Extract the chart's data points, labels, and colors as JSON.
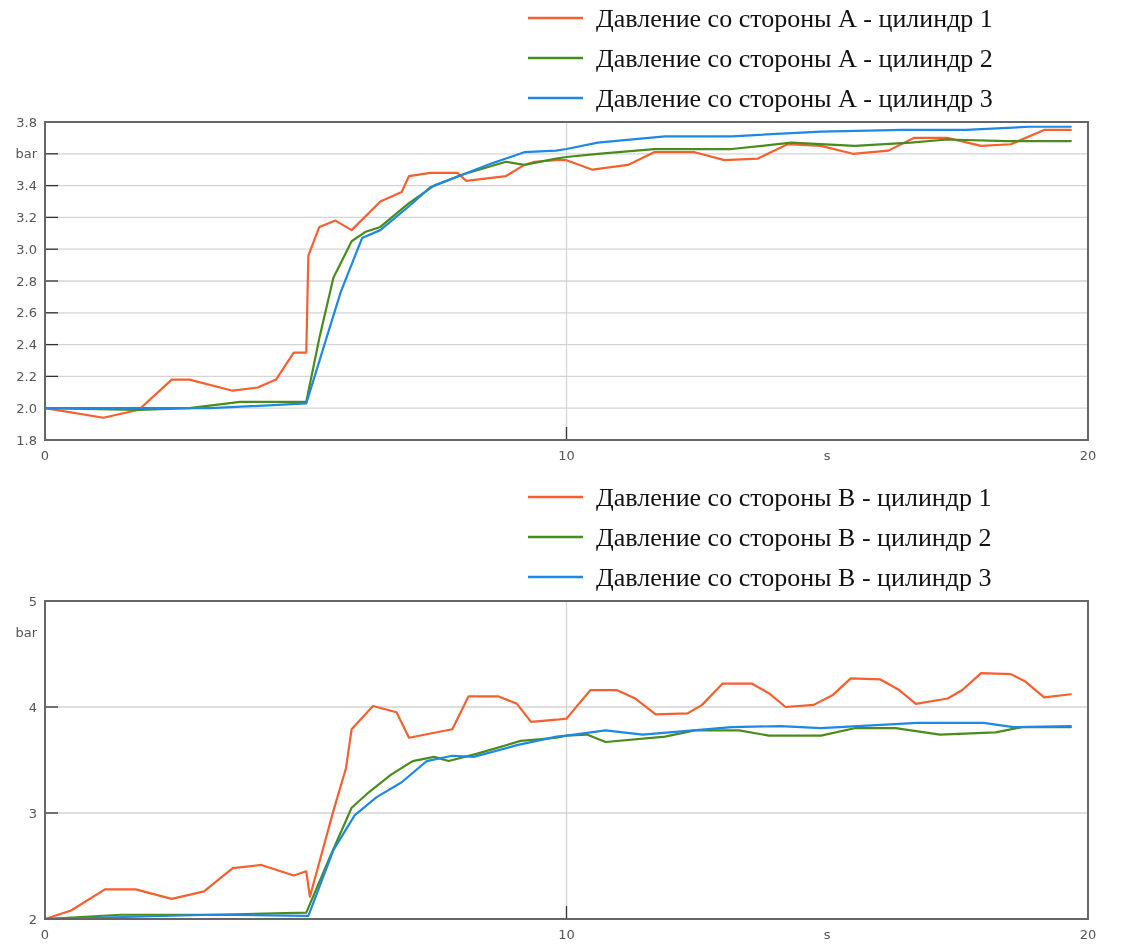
{
  "chart_data": [
    {
      "type": "line",
      "xlabel": "s",
      "ylabel": "bar",
      "xlim": [
        0,
        20
      ],
      "xticks": [
        0,
        10,
        20
      ],
      "ylim": [
        1.8,
        3.8
      ],
      "yticks": [
        1.8,
        {
          "value": 2,
          "label": "2.0"
        },
        2.2,
        2.4,
        2.6,
        2.8,
        {
          "value": 3,
          "label": "3.0"
        },
        3.2,
        3.4,
        {
          "value": 3.6,
          "label": null
        },
        3.8
      ],
      "grid": true,
      "legend": "top right",
      "line_style": "solid",
      "series": [
        {
          "name": "Давление со стороны А - цилиндр 1",
          "color": "#f5602f",
          "x": [
            0,
            1.12,
            1.8,
            2.43,
            2.77,
            3.6,
            4.08,
            4.43,
            4.77,
            5.01,
            5.05,
            5.26,
            5.57,
            5.88,
            6.43,
            6.84,
            6.98,
            7.39,
            7.91,
            8.08,
            8.84,
            9.19,
            9.39,
            9.8,
            10,
            10.5,
            11.18,
            11.68,
            12.46,
            13.03,
            13.67,
            14.24,
            14.88,
            15.49,
            16.17,
            16.66,
            17.3,
            17.95,
            18.52,
            19.16,
            19.67
          ],
          "values": [
            2.0,
            1.94,
            1.99,
            2.18,
            2.18,
            2.11,
            2.13,
            2.18,
            2.35,
            2.35,
            2.96,
            3.14,
            3.18,
            3.12,
            3.3,
            3.36,
            3.46,
            3.48,
            3.48,
            3.43,
            3.46,
            3.53,
            3.55,
            3.56,
            3.56,
            3.5,
            3.53,
            3.61,
            3.61,
            3.56,
            3.57,
            3.66,
            3.65,
            3.6,
            3.62,
            3.7,
            3.7,
            3.65,
            3.66,
            3.75,
            3.75
          ]
        },
        {
          "name": "Давление со стороны А - цилиндр 2",
          "color": "#4a8c1c",
          "x": [
            0,
            1.8,
            2.77,
            3.74,
            5.01,
            5.26,
            5.53,
            5.88,
            6.15,
            6.43,
            6.98,
            7.46,
            8.01,
            8.84,
            9.19,
            9.8,
            10,
            10.6,
            11.68,
            13.17,
            14.31,
            15.53,
            16.6,
            17.3,
            18.44,
            19.67
          ],
          "values": [
            2.0,
            1.99,
            2.0,
            2.04,
            2.04,
            2.44,
            2.82,
            3.05,
            3.11,
            3.14,
            3.29,
            3.4,
            3.47,
            3.55,
            3.53,
            3.57,
            3.58,
            3.6,
            3.63,
            3.63,
            3.67,
            3.65,
            3.67,
            3.69,
            3.68,
            3.68
          ]
        },
        {
          "name": "Давление со стороны А - цилиндр 3",
          "color": "#1e88e5",
          "x": [
            0,
            3.18,
            5.01,
            5.33,
            5.67,
            6.08,
            6.43,
            6.98,
            7.39,
            7.94,
            8.57,
            9.19,
            9.8,
            10,
            10.6,
            11.89,
            13.17,
            14.88,
            16.45,
            17.66,
            18.87,
            19.67
          ],
          "values": [
            2.0,
            2.0,
            2.03,
            2.37,
            2.73,
            3.07,
            3.12,
            3.27,
            3.39,
            3.46,
            3.54,
            3.61,
            3.62,
            3.63,
            3.67,
            3.71,
            3.71,
            3.74,
            3.75,
            3.75,
            3.77,
            3.77
          ]
        }
      ]
    },
    {
      "type": "line",
      "xlabel": "s",
      "ylabel": "bar",
      "xlim": [
        0,
        20
      ],
      "xticks": [
        0,
        10,
        20
      ],
      "ylim": [
        2,
        5
      ],
      "yticks": [
        2,
        3,
        4,
        5
      ],
      "grid": true,
      "legend": "top right",
      "line_style": "solid",
      "series": [
        {
          "name": "Давление со стороны В - цилиндр 1",
          "color": "#f5602f",
          "x": [
            0,
            0.5,
            1.15,
            1.74,
            2.43,
            3.05,
            3.6,
            4.15,
            4.77,
            5.01,
            5.08,
            5.53,
            5.77,
            5.88,
            6.29,
            6.74,
            6.98,
            7.81,
            8.12,
            8.7,
            9.05,
            9.32,
            9.81,
            10,
            10.46,
            10.96,
            11.32,
            11.71,
            12.32,
            12.6,
            12.99,
            13.56,
            13.88,
            14.2,
            14.74,
            15.1,
            15.45,
            16.02,
            16.38,
            16.7,
            17.31,
            17.59,
            17.95,
            18.52,
            18.8,
            19.16,
            19.67
          ],
          "values": [
            2.0,
            2.08,
            2.28,
            2.28,
            2.19,
            2.26,
            2.48,
            2.51,
            2.41,
            2.45,
            2.21,
            3.02,
            3.42,
            3.79,
            4.01,
            3.95,
            3.71,
            3.79,
            4.1,
            4.1,
            4.03,
            3.86,
            3.88,
            3.89,
            4.16,
            4.16,
            4.08,
            3.93,
            3.94,
            4.02,
            4.22,
            4.22,
            4.13,
            4.0,
            4.02,
            4.11,
            4.27,
            4.26,
            4.16,
            4.03,
            4.08,
            4.16,
            4.32,
            4.31,
            4.24,
            4.09,
            4.12
          ]
        },
        {
          "name": "Давление со стороны В - цилиндр 2",
          "color": "#4a8c1c",
          "x": [
            0,
            1.46,
            3.19,
            5.01,
            5.46,
            5.88,
            6.22,
            6.63,
            7.05,
            7.46,
            7.74,
            8.29,
            9.12,
            9.81,
            10,
            10.39,
            10.75,
            11.89,
            12.46,
            13.31,
            13.88,
            14.88,
            15.52,
            16.31,
            17.16,
            18.23,
            18.73,
            19.67
          ],
          "values": [
            2.0,
            2.04,
            2.04,
            2.06,
            2.58,
            3.05,
            3.2,
            3.36,
            3.49,
            3.53,
            3.49,
            3.56,
            3.68,
            3.71,
            3.73,
            3.74,
            3.67,
            3.72,
            3.78,
            3.78,
            3.73,
            3.73,
            3.8,
            3.8,
            3.74,
            3.76,
            3.81,
            3.81
          ]
        },
        {
          "name": "Давление со стороны В - цилиндр 3",
          "color": "#1e88e5",
          "x": [
            0,
            3.19,
            5.05,
            5.53,
            5.94,
            6.36,
            6.84,
            7.32,
            7.81,
            8.22,
            9.05,
            9.81,
            10,
            10.75,
            11.46,
            13.17,
            14.1,
            14.88,
            16.73,
            18.0,
            18.57,
            19.67
          ],
          "values": [
            2.0,
            2.04,
            2.03,
            2.65,
            2.98,
            3.15,
            3.29,
            3.49,
            3.54,
            3.53,
            3.64,
            3.72,
            3.73,
            3.78,
            3.74,
            3.81,
            3.82,
            3.8,
            3.85,
            3.85,
            3.81,
            3.82
          ]
        }
      ]
    }
  ]
}
